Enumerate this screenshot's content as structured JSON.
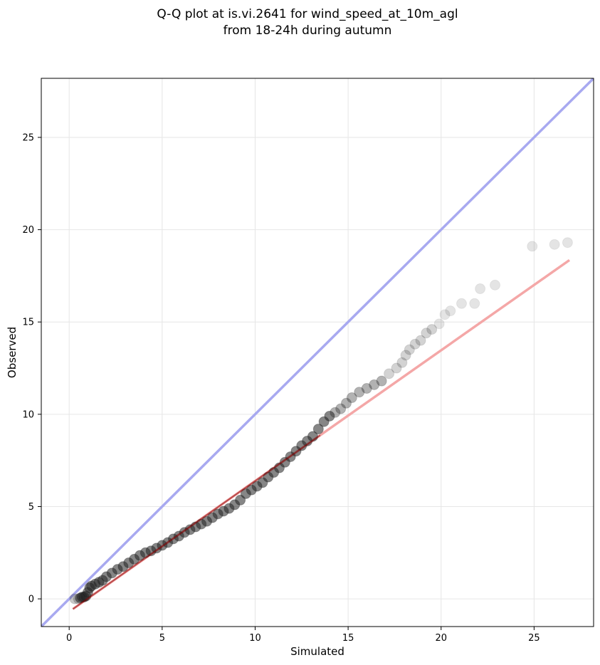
{
  "chart_data": {
    "type": "scatter",
    "title_line1": "Q-Q plot at is.vi.2641 for wind_speed_at_10m_agl",
    "title_line2": "from 18-24h during autumn",
    "xlabel": "Simulated",
    "ylabel": "Observed",
    "xlim": [
      -1.5,
      28.2
    ],
    "ylim": [
      -1.5,
      28.2
    ],
    "xticks": [
      0,
      5,
      10,
      15,
      20,
      25
    ],
    "yticks": [
      0,
      5,
      10,
      15,
      20,
      25
    ],
    "grid": true,
    "colors": {
      "points": "#222222",
      "identity_line": "#a8a9f0",
      "fit_line": "#f4a7a7",
      "fit_line_dark": "#8b0000",
      "grid": "#e6e6e6"
    },
    "identity_line": {
      "x": [
        -1.5,
        28.2
      ],
      "y": [
        -1.5,
        28.2
      ]
    },
    "fit_line": {
      "x": [
        0.2,
        26.9
      ],
      "y": [
        -0.55,
        18.35
      ]
    },
    "quantiles": {
      "x": [
        0.3,
        0.5,
        0.6,
        0.7,
        0.8,
        0.9,
        1.0,
        1.1,
        1.2,
        1.4,
        1.6,
        1.8,
        2.0,
        2.3,
        2.6,
        2.9,
        3.2,
        3.5,
        3.8,
        4.1,
        4.4,
        4.7,
        5.0,
        5.3,
        5.6,
        5.9,
        6.2,
        6.5,
        6.8,
        7.1,
        7.4,
        7.7,
        8.0,
        8.3,
        8.6,
        8.9,
        9.2,
        9.5,
        9.8,
        10.1,
        10.4,
        10.7,
        11.0,
        11.3,
        11.6,
        11.9,
        12.2,
        12.5,
        12.8,
        13.1,
        13.4,
        13.7,
        14.0,
        14.3,
        14.6,
        14.9,
        15.2,
        15.6,
        16.0,
        16.4,
        16.8,
        17.2,
        17.6,
        17.9,
        18.1,
        18.3,
        18.6,
        18.9,
        19.2,
        19.5,
        19.9,
        20.2,
        20.5,
        21.1,
        21.8,
        22.1,
        22.9,
        24.9,
        26.1,
        26.8
      ],
      "y": [
        0.0,
        0.0,
        0.05,
        0.1,
        0.1,
        0.15,
        0.35,
        0.6,
        0.7,
        0.8,
        0.9,
        1.0,
        1.2,
        1.4,
        1.6,
        1.75,
        1.95,
        2.15,
        2.35,
        2.5,
        2.6,
        2.75,
        2.9,
        3.05,
        3.25,
        3.4,
        3.6,
        3.75,
        3.9,
        4.05,
        4.2,
        4.4,
        4.6,
        4.75,
        4.9,
        5.1,
        5.35,
        5.7,
        5.9,
        6.1,
        6.3,
        6.6,
        6.85,
        7.1,
        7.4,
        7.7,
        8.0,
        8.3,
        8.55,
        8.8,
        9.2,
        9.6,
        9.9,
        10.1,
        10.3,
        10.6,
        10.9,
        11.2,
        11.4,
        11.6,
        11.8,
        12.2,
        12.5,
        12.8,
        13.2,
        13.5,
        13.8,
        14.0,
        14.4,
        14.6,
        14.9,
        15.4,
        15.6,
        16.0,
        16.0,
        16.8,
        17.0,
        19.1,
        19.2,
        19.3
      ]
    }
  }
}
